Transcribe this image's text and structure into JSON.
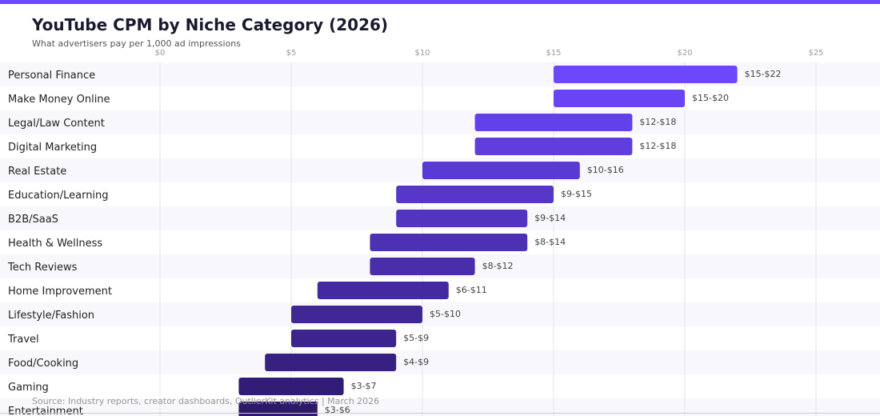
{
  "title": "YouTube CPM by Niche Category (2026)",
  "subtitle": "What advertisers pay per 1,000 ad impressions",
  "source": "Source: Industry reports, creator dashboards, OutlierKit analytics | March 2026",
  "colors": {
    "accent": "#6c47ff",
    "bar_top": "#6c47ff",
    "bar_bottom": "#2e1a6b",
    "row_alt": "#f8f8fc",
    "grid": "#e5e5ee",
    "label": "#222222",
    "value": "#444444",
    "tick": "#999999"
  },
  "chart_data": {
    "type": "bar",
    "orientation": "horizontal-range",
    "title": "YouTube CPM by Niche Category (2026)",
    "subtitle": "What advertisers pay per 1,000 ad impressions",
    "xlim": [
      0,
      27
    ],
    "ticks": [
      0,
      5,
      10,
      15,
      20,
      25
    ],
    "tick_labels": [
      "$0",
      "$5",
      "$10",
      "$15",
      "$20",
      "$25"
    ],
    "categories": [
      {
        "name": "Personal Finance",
        "min": 15,
        "max": 22,
        "label": "$15-$22"
      },
      {
        "name": "Make Money Online",
        "min": 15,
        "max": 20,
        "label": "$15-$20"
      },
      {
        "name": "Legal/Law Content",
        "min": 12,
        "max": 18,
        "label": "$12-$18"
      },
      {
        "name": "Digital Marketing",
        "min": 12,
        "max": 18,
        "label": "$12-$18"
      },
      {
        "name": "Real Estate",
        "min": 10,
        "max": 16,
        "label": "$10-$16"
      },
      {
        "name": "Education/Learning",
        "min": 9,
        "max": 15,
        "label": "$9-$15"
      },
      {
        "name": "B2B/SaaS",
        "min": 9,
        "max": 14,
        "label": "$9-$14"
      },
      {
        "name": "Health & Wellness",
        "min": 8,
        "max": 14,
        "label": "$8-$14"
      },
      {
        "name": "Tech Reviews",
        "min": 8,
        "max": 12,
        "label": "$8-$12"
      },
      {
        "name": "Home Improvement",
        "min": 6,
        "max": 11,
        "label": "$6-$11"
      },
      {
        "name": "Lifestyle/Fashion",
        "min": 5,
        "max": 10,
        "label": "$5-$10"
      },
      {
        "name": "Travel",
        "min": 5,
        "max": 9,
        "label": "$5-$9"
      },
      {
        "name": "Food/Cooking",
        "min": 4,
        "max": 9,
        "label": "$4-$9"
      },
      {
        "name": "Gaming",
        "min": 3,
        "max": 7,
        "label": "$3-$7"
      },
      {
        "name": "Entertainment",
        "min": 3,
        "max": 6,
        "label": "$3-$6"
      }
    ]
  }
}
